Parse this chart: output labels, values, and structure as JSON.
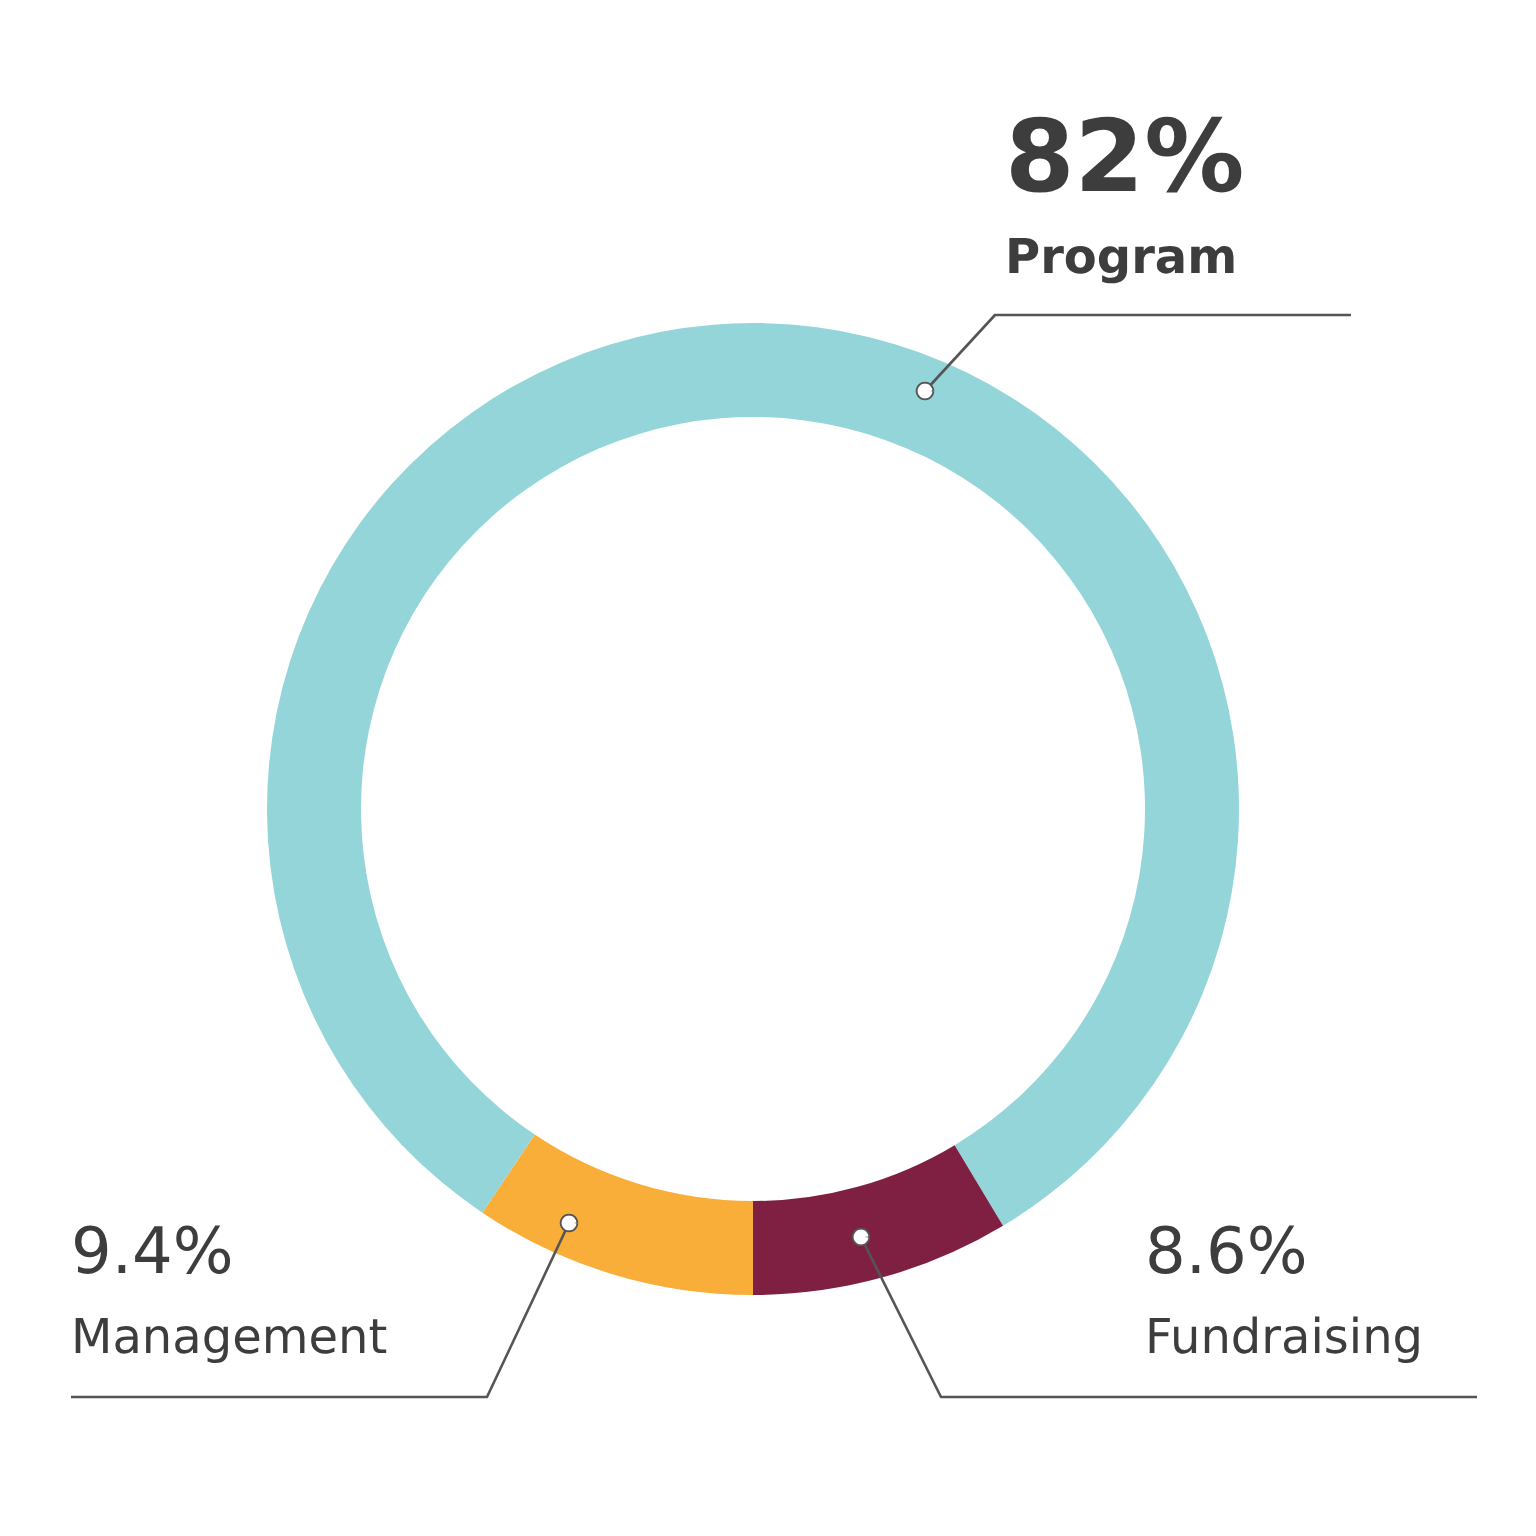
{
  "chart_data": {
    "type": "donut",
    "categories": [
      "Management",
      "Program",
      "Fundraising"
    ],
    "values": [
      9.4,
      82,
      8.6
    ],
    "colors": [
      "#f9ae3a",
      "#94d5da",
      "#7f1f42"
    ],
    "value_labels": [
      "9.4%",
      "82%",
      "8.6%"
    ]
  }
}
